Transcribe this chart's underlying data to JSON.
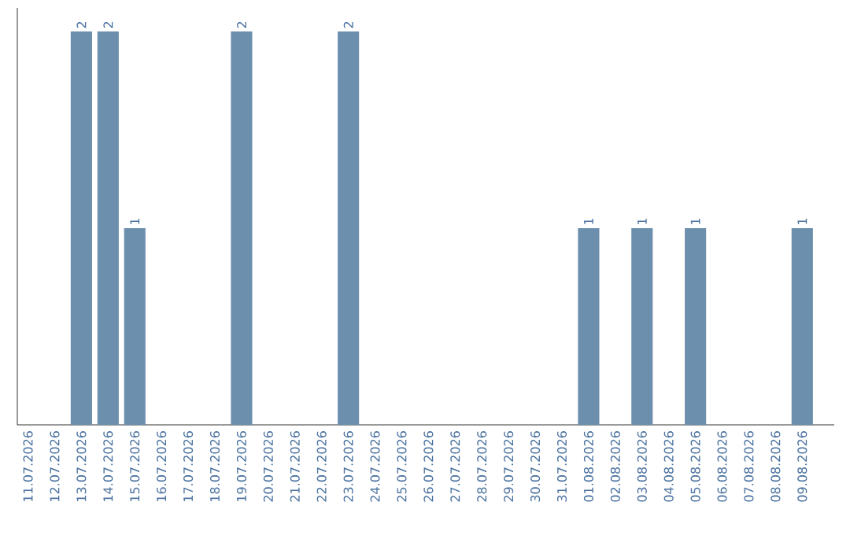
{
  "chart_data": {
    "type": "bar",
    "categories": [
      "11.07.2026",
      "12.07.2026",
      "13.07.2026",
      "14.07.2026",
      "15.07.2026",
      "16.07.2026",
      "17.07.2026",
      "18.07.2026",
      "19.07.2026",
      "20.07.2026",
      "21.07.2026",
      "22.07.2026",
      "23.07.2026",
      "24.07.2026",
      "25.07.2026",
      "26.07.2026",
      "27.07.2026",
      "28.07.2026",
      "29.07.2026",
      "30.07.2026",
      "31.07.2026",
      "01.08.2026",
      "02.08.2026",
      "03.08.2026",
      "04.08.2026",
      "05.08.2026",
      "06.08.2026",
      "07.08.2026",
      "08.08.2026",
      "09.08.2026"
    ],
    "values": [
      0,
      0,
      2,
      2,
      1,
      0,
      0,
      0,
      2,
      0,
      0,
      0,
      2,
      0,
      0,
      0,
      0,
      0,
      0,
      0,
      0,
      1,
      0,
      1,
      0,
      1,
      0,
      0,
      0,
      1
    ],
    "value_labels": [
      null,
      null,
      "2",
      "2",
      "1",
      null,
      null,
      null,
      "2",
      null,
      null,
      null,
      "2",
      null,
      null,
      null,
      null,
      null,
      null,
      null,
      null,
      "1",
      null,
      "1",
      null,
      "1",
      null,
      null,
      null,
      "1"
    ],
    "color": "#6d8fae",
    "tick_labels": "x"
  }
}
